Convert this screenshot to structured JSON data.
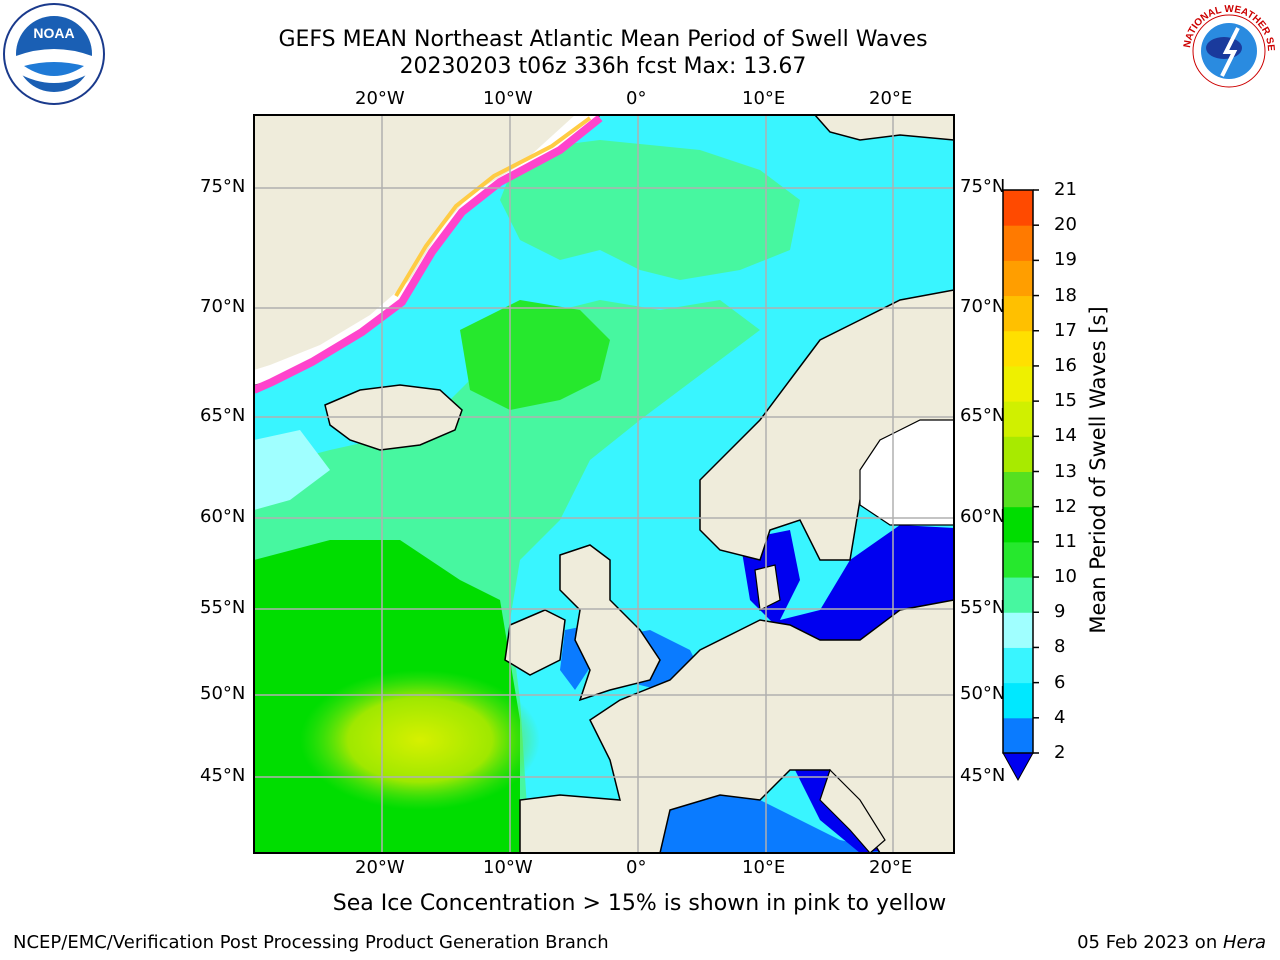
{
  "header": {
    "title_line1": "GEFS MEAN Northeast Atlantic Mean Period of Swell Waves",
    "title_line2": "20230203 t06z 336h fcst   Max: 13.67"
  },
  "map": {
    "lon_labels": [
      "20°W",
      "10°W",
      "0°",
      "10°E",
      "20°E"
    ],
    "lat_labels": [
      "75°N",
      "70°N",
      "65°N",
      "60°N",
      "55°N",
      "50°N",
      "45°N"
    ]
  },
  "colorbar": {
    "label": "Mean Period of Swell Waves [s]",
    "ticks": [
      "2",
      "4",
      "6",
      "8",
      "9",
      "10",
      "11",
      "12",
      "13",
      "14",
      "15",
      "16",
      "17",
      "18",
      "19",
      "20",
      "21"
    ],
    "colors": [
      "#0a7bff",
      "#00e8ff",
      "#39f5ff",
      "#a0ffff",
      "#47f7a0",
      "#26e82d",
      "#00dd00",
      "#55e020",
      "#a8ea00",
      "#d0f000",
      "#eef000",
      "#ffe000",
      "#ffc000",
      "#ff9e00",
      "#ff7a00",
      "#ff4a00",
      "#ff1800"
    ],
    "under_color": "#0000f0"
  },
  "notes": {
    "ice": "Sea Ice Concentration > 15% is shown in pink to yellow"
  },
  "footer": {
    "left": "NCEP/EMC/Verification Post Processing Product Generation Branch",
    "date": "05 Feb 2023 on ",
    "host": "Hera"
  },
  "logos": {
    "noaa_text": "NOAA",
    "nws_text": "NATIONAL WEATHER SERVICE"
  }
}
